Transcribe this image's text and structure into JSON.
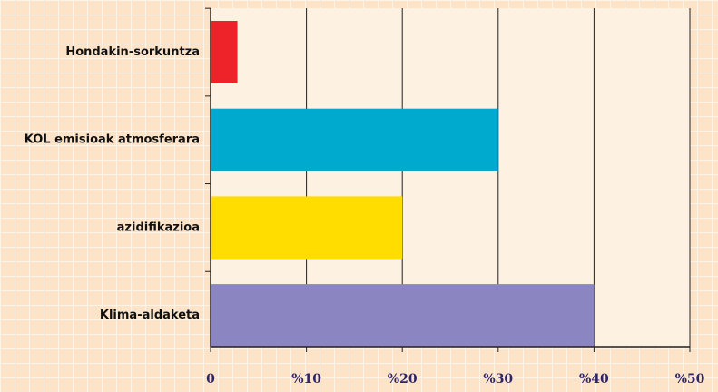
{
  "chart_data": {
    "type": "bar",
    "orientation": "horizontal",
    "categories": [
      "Hondakin-sorkuntza",
      "KOL emisioak atmosferara",
      "azidifikazioa",
      "Klima-aldaketa"
    ],
    "values": [
      2.8,
      30,
      20,
      40
    ],
    "colors": [
      "#ee2229",
      "#00a9ce",
      "#ffdd00",
      "#8b85c1"
    ],
    "xlim": [
      0,
      50
    ],
    "xticks": [
      0,
      {
        "value": 10,
        "label": "%10"
      },
      {
        "value": 20,
        "label": "%20"
      },
      {
        "value": 30,
        "label": "%30"
      },
      {
        "value": 40,
        "label": "%40"
      },
      {
        "value": 50,
        "label": "%50"
      }
    ],
    "grid": true
  }
}
